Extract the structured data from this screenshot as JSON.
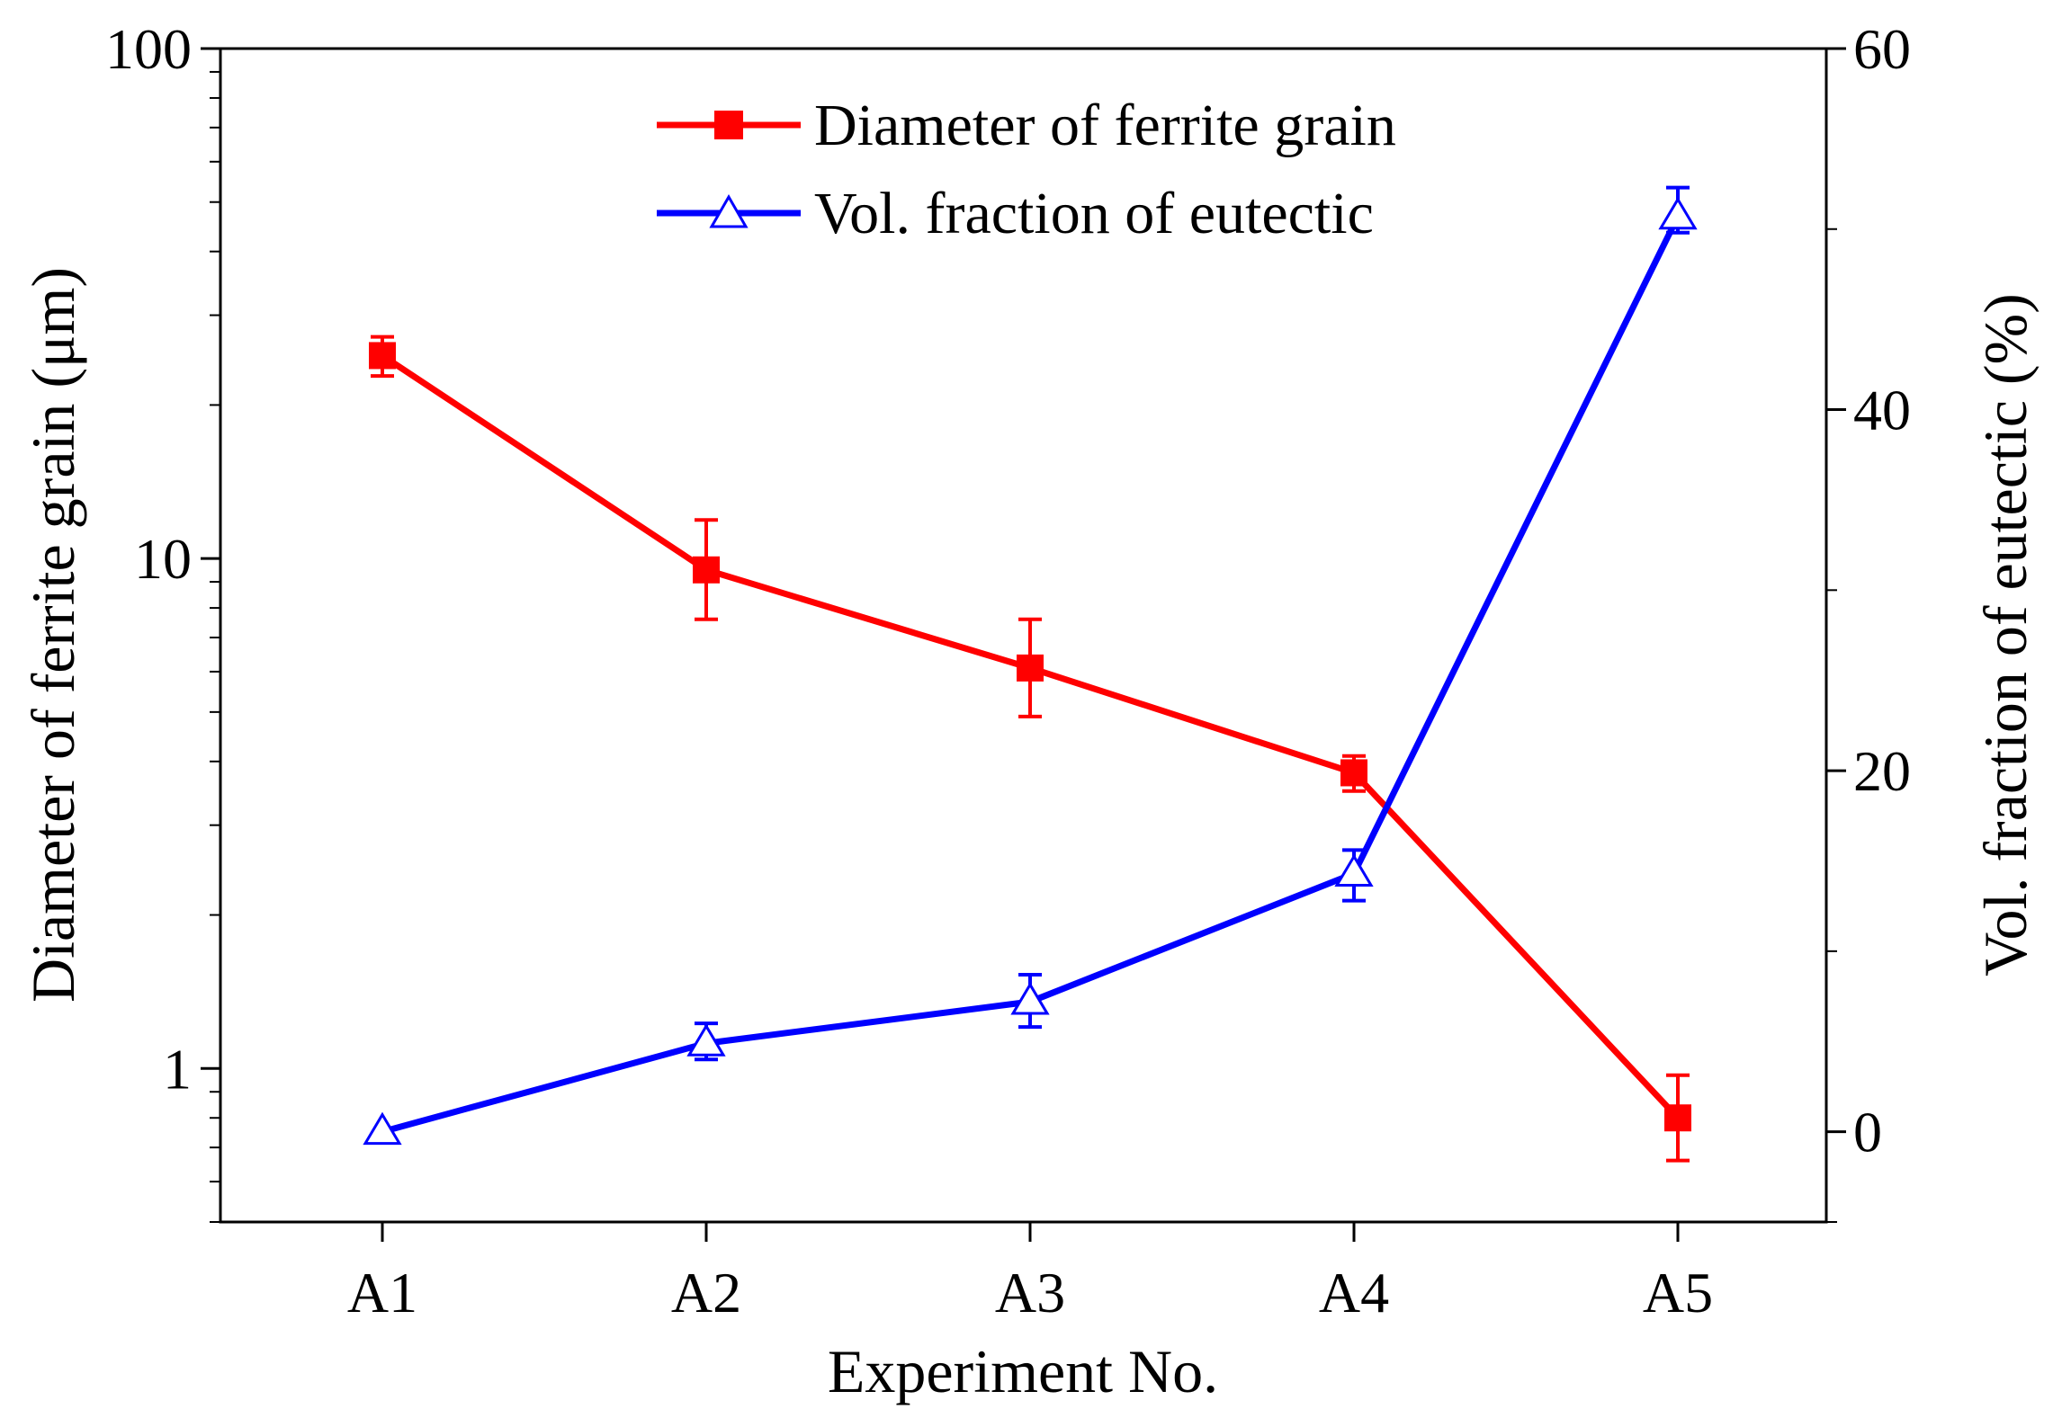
{
  "chart_data": {
    "type": "line",
    "title": "",
    "xlabel": "Experiment No.",
    "ylabel": "Diameter of ferrite grain (μm)",
    "y2label": "Vol. fraction of eutectic (%)",
    "categories": [
      "A1",
      "A2",
      "A3",
      "A4",
      "A5"
    ],
    "yscale": "log",
    "ylim": [
      0.5,
      100
    ],
    "yticks": [
      1,
      10,
      100
    ],
    "yticklabels": [
      "1",
      "10",
      "100"
    ],
    "y2lim": [
      -5,
      60
    ],
    "y2ticks": [
      0,
      20,
      40,
      60
    ],
    "y2ticklabels": [
      "0",
      "20",
      "40",
      "60"
    ],
    "legend_position": "top-center",
    "series": [
      {
        "name": "Diameter of ferrite grain",
        "axis": "left",
        "color": "#ff0000",
        "marker": "square-filled",
        "values": [
          25,
          9.5,
          6.1,
          3.8,
          0.8
        ],
        "err_low": [
          22.8,
          7.6,
          4.9,
          3.5,
          0.66
        ],
        "err_high": [
          27.2,
          11.9,
          7.6,
          4.1,
          0.97
        ]
      },
      {
        "name": "Vol. fraction of eutectic",
        "axis": "right",
        "color": "#0000ff",
        "marker": "triangle-open",
        "values": [
          0,
          4.9,
          7.2,
          14.3,
          50.7
        ],
        "err_low": [
          0,
          4.0,
          5.8,
          12.8,
          49.8
        ],
        "err_high": [
          0,
          6.0,
          8.7,
          15.6,
          52.3
        ]
      }
    ]
  }
}
